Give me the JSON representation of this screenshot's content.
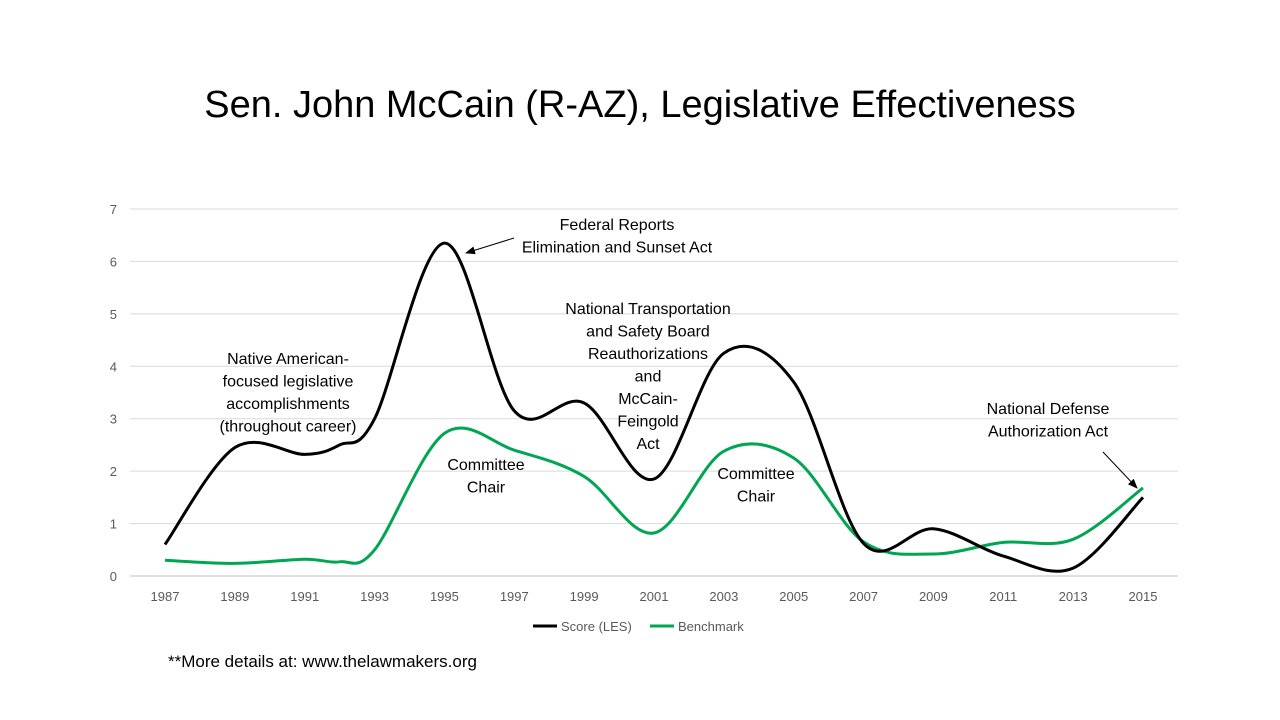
{
  "chart_data": {
    "type": "line",
    "title": "Sen. John McCain (R-AZ), Legislative Effectiveness",
    "xlabel": "",
    "ylabel": "",
    "ylim": [
      0,
      7
    ],
    "yticks": [
      0,
      1,
      2,
      3,
      4,
      5,
      6,
      7
    ],
    "categories": [
      "1987",
      "1989",
      "1991",
      "1993",
      "1995",
      "1997",
      "1999",
      "2001",
      "2003",
      "2005",
      "2007",
      "2009",
      "2011",
      "2013",
      "2015"
    ],
    "series": [
      {
        "name": "Score (LES)",
        "color": "#000000",
        "x": [
          1987,
          1989,
          1991,
          1992,
          1993,
          1995,
          1997,
          1999,
          2001,
          2003,
          2005,
          2007,
          2009,
          2011,
          2013,
          2015
        ],
        "values": [
          0.6,
          2.45,
          2.32,
          2.5,
          3.0,
          6.35,
          3.15,
          3.3,
          1.85,
          4.25,
          3.7,
          0.62,
          0.9,
          0.38,
          0.15,
          1.5
        ]
      },
      {
        "name": "Benchmark",
        "color": "#00A651",
        "x": [
          1987,
          1989,
          1991,
          1992,
          1993,
          1995,
          1997,
          1999,
          2001,
          2003,
          2005,
          2007,
          2009,
          2011,
          2013,
          2015
        ],
        "values": [
          0.3,
          0.24,
          0.32,
          0.27,
          0.5,
          2.72,
          2.4,
          1.9,
          0.82,
          2.38,
          2.25,
          0.65,
          0.42,
          0.64,
          0.7,
          1.68
        ]
      }
    ],
    "annotations": [
      {
        "id": "federal-reports",
        "lines": [
          "Federal Reports",
          "Elimination and Sunset Act"
        ]
      },
      {
        "id": "native-american",
        "lines": [
          "Native American-",
          "focused legislative",
          "accomplishments",
          "(throughout career)"
        ]
      },
      {
        "id": "ntsb",
        "lines": [
          "National Transportation",
          "and Safety Board",
          "Reauthorizations",
          "and",
          "McCain-",
          "Feingold",
          "Act"
        ]
      },
      {
        "id": "committee-chair-1",
        "lines": [
          "Committee",
          "Chair"
        ]
      },
      {
        "id": "committee-chair-2",
        "lines": [
          "Committee",
          "Chair"
        ]
      },
      {
        "id": "ndaa",
        "lines": [
          "National Defense",
          "Authorization Act"
        ]
      }
    ],
    "legend": "bottom"
  },
  "footnote": "**More details at: www.thelawmakers.org"
}
